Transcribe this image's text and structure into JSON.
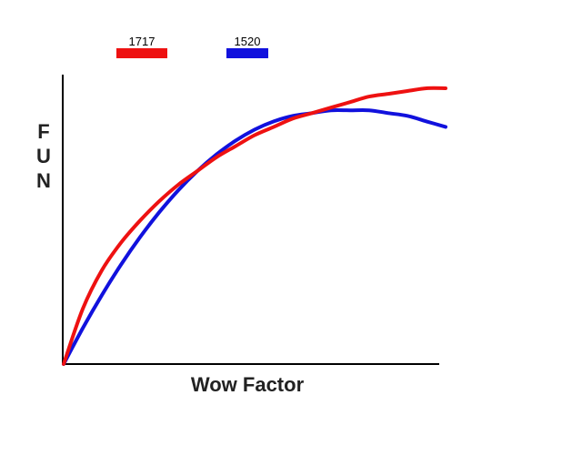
{
  "chart_data": {
    "type": "line",
    "title": "",
    "xlabel": "Wow Factor",
    "ylabel": "FUN",
    "xlim": [
      0,
      100
    ],
    "ylim": [
      0,
      100
    ],
    "grid": false,
    "legend_position": "top-left",
    "x": [
      0,
      5,
      10,
      15,
      20,
      25,
      30,
      35,
      40,
      45,
      50,
      55,
      60,
      65,
      70,
      75,
      80,
      85,
      90,
      95,
      100
    ],
    "series": [
      {
        "name": "1717",
        "color": "#ee1111",
        "values": [
          0,
          20,
          34,
          44,
          52,
          59,
          65,
          70,
          75,
          79,
          83,
          86,
          89,
          91,
          93,
          95,
          97,
          98,
          99,
          100,
          100
        ]
      },
      {
        "name": "1520",
        "color": "#1111dd",
        "values": [
          0,
          13,
          25,
          36,
          46,
          55,
          63,
          70,
          76,
          81,
          85,
          88,
          90,
          91,
          92,
          92,
          92,
          91,
          90,
          88,
          86
        ]
      }
    ]
  }
}
